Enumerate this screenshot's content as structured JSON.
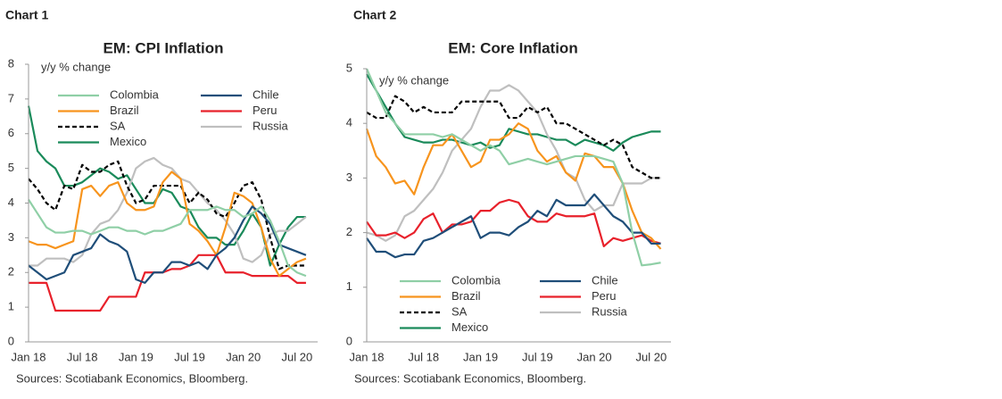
{
  "chart_data": [
    {
      "type": "line",
      "label": "Chart 1",
      "title": "EM: CPI Inflation",
      "ylabel": "y/y % change",
      "source": "Sources: Scotiabank Economics, Bloomberg.",
      "categories": [
        "Jan 18",
        null,
        null,
        null,
        null,
        null,
        "Jul 18",
        null,
        null,
        null,
        null,
        null,
        "Jan 19",
        null,
        null,
        null,
        null,
        null,
        "Jul 19",
        null,
        null,
        null,
        null,
        null,
        "Jan 20",
        null,
        null,
        null,
        null,
        null,
        "Jul 20",
        null
      ],
      "ylim": [
        0,
        8
      ],
      "yticks": [
        0,
        1,
        2,
        3,
        4,
        5,
        6,
        7,
        8
      ],
      "grid": false,
      "legend": "upper-left",
      "series": [
        {
          "name": "Colombia",
          "color": "#8fcfa6",
          "values": [
            4.1,
            3.7,
            3.3,
            3.15,
            3.15,
            3.2,
            3.2,
            3.1,
            3.2,
            3.3,
            3.3,
            3.2,
            3.2,
            3.1,
            3.2,
            3.2,
            3.3,
            3.4,
            3.8,
            3.8,
            3.8,
            3.9,
            3.8,
            3.8,
            3.6,
            3.7,
            3.9,
            3.5,
            2.9,
            2.2,
            2.0,
            1.9
          ]
        },
        {
          "name": "Chile",
          "color": "#1f4e79",
          "values": [
            2.2,
            2.0,
            1.8,
            1.9,
            2.0,
            2.5,
            2.6,
            2.7,
            3.1,
            2.9,
            2.8,
            2.6,
            1.8,
            1.7,
            2.0,
            2.0,
            2.3,
            2.3,
            2.2,
            2.3,
            2.1,
            2.5,
            2.7,
            3.0,
            3.5,
            3.9,
            3.7,
            3.4,
            2.8,
            2.7,
            2.6,
            2.5
          ]
        },
        {
          "name": "Brazil",
          "color": "#f7941d",
          "values": [
            2.9,
            2.8,
            2.8,
            2.7,
            2.8,
            2.9,
            4.4,
            4.5,
            4.2,
            4.5,
            4.6,
            4.0,
            3.8,
            3.8,
            3.9,
            4.6,
            4.9,
            4.7,
            3.4,
            3.2,
            2.9,
            2.5,
            3.3,
            4.3,
            4.2,
            4.0,
            3.3,
            2.4,
            1.9,
            2.1,
            2.3,
            2.4
          ]
        },
        {
          "name": "Peru",
          "color": "#e8212b",
          "values": [
            1.7,
            1.7,
            1.7,
            0.9,
            0.9,
            0.9,
            0.9,
            0.9,
            0.9,
            1.3,
            1.3,
            1.3,
            1.3,
            2.0,
            2.0,
            2.0,
            2.1,
            2.1,
            2.2,
            2.5,
            2.5,
            2.5,
            2.0,
            2.0,
            2.0,
            1.9,
            1.9,
            1.9,
            1.9,
            1.9,
            1.7,
            1.7
          ]
        },
        {
          "name": "SA",
          "color": "#000000",
          "dashed": true,
          "values": [
            4.7,
            4.4,
            4.0,
            3.8,
            4.5,
            4.4,
            5.1,
            4.9,
            4.9,
            5.1,
            5.2,
            4.5,
            4.0,
            4.1,
            4.5,
            4.5,
            4.5,
            4.5,
            4.0,
            4.3,
            4.1,
            3.7,
            3.6,
            4.0,
            4.5,
            4.6,
            4.1,
            3.0,
            2.1,
            2.2,
            2.2,
            2.2
          ]
        },
        {
          "name": "Russia",
          "color": "#bfbfbf",
          "values": [
            2.2,
            2.2,
            2.4,
            2.4,
            2.4,
            2.3,
            2.5,
            3.1,
            3.4,
            3.5,
            3.8,
            4.3,
            5.0,
            5.2,
            5.3,
            5.1,
            5.0,
            4.7,
            4.6,
            4.3,
            4.0,
            3.8,
            3.5,
            3.1,
            2.4,
            2.3,
            2.5,
            3.1,
            3.2,
            3.2,
            3.4,
            3.6
          ]
        },
        {
          "name": "Mexico",
          "color": "#1a8a5a",
          "values": [
            6.8,
            5.5,
            5.2,
            5.0,
            4.5,
            4.5,
            4.6,
            4.8,
            5.0,
            4.9,
            4.7,
            4.8,
            4.4,
            4.0,
            4.0,
            4.4,
            4.3,
            3.9,
            3.8,
            3.3,
            3.0,
            3.0,
            2.8,
            2.8,
            3.2,
            3.7,
            3.3,
            2.2,
            2.8,
            3.3,
            3.6,
            3.6
          ]
        }
      ]
    },
    {
      "type": "line",
      "label": "Chart 2",
      "title": "EM: Core Inflation",
      "ylabel": "y/y % change",
      "source": "Sources: Scotiabank Economics, Bloomberg.",
      "categories": [
        "Jan 18",
        null,
        null,
        null,
        null,
        null,
        "Jul 18",
        null,
        null,
        null,
        null,
        null,
        "Jan 19",
        null,
        null,
        null,
        null,
        null,
        "Jul 19",
        null,
        null,
        null,
        null,
        null,
        "Jan 20",
        null,
        null,
        null,
        null,
        null,
        "Jul 20",
        null
      ],
      "ylim": [
        0,
        5
      ],
      "yticks": [
        0,
        1,
        2,
        3,
        4,
        5
      ],
      "grid": false,
      "legend": "lower-left",
      "series": [
        {
          "name": "Colombia",
          "color": "#8fcfa6",
          "values": [
            5.0,
            4.6,
            4.2,
            4.0,
            3.8,
            3.8,
            3.8,
            3.8,
            3.75,
            3.8,
            3.7,
            3.6,
            3.5,
            3.6,
            3.5,
            3.25,
            3.3,
            3.35,
            3.3,
            3.25,
            3.3,
            3.35,
            3.4,
            3.4,
            3.4,
            3.35,
            3.3,
            2.9,
            2.0,
            1.4,
            1.42,
            1.45
          ]
        },
        {
          "name": "Chile",
          "color": "#1f4e79",
          "values": [
            1.9,
            1.65,
            1.65,
            1.55,
            1.6,
            1.6,
            1.85,
            1.9,
            2.0,
            2.1,
            2.2,
            2.3,
            1.9,
            2.0,
            2.0,
            1.95,
            2.1,
            2.2,
            2.4,
            2.3,
            2.6,
            2.5,
            2.5,
            2.5,
            2.7,
            2.5,
            2.3,
            2.2,
            2.0,
            2.0,
            1.8,
            1.8
          ]
        },
        {
          "name": "Brazil",
          "color": "#f7941d",
          "values": [
            3.9,
            3.4,
            3.2,
            2.9,
            2.95,
            2.7,
            3.2,
            3.6,
            3.6,
            3.8,
            3.5,
            3.2,
            3.3,
            3.7,
            3.7,
            3.8,
            4.0,
            3.9,
            3.5,
            3.3,
            3.4,
            3.1,
            2.95,
            3.45,
            3.4,
            3.2,
            3.2,
            2.9,
            2.4,
            2.0,
            1.9,
            1.7
          ]
        },
        {
          "name": "Peru",
          "color": "#e8212b",
          "values": [
            2.2,
            1.95,
            1.95,
            2.0,
            1.9,
            2.0,
            2.25,
            2.35,
            2.0,
            2.15,
            2.15,
            2.2,
            2.4,
            2.4,
            2.55,
            2.6,
            2.55,
            2.3,
            2.2,
            2.2,
            2.35,
            2.3,
            2.3,
            2.3,
            2.35,
            1.75,
            1.9,
            1.85,
            1.9,
            1.95,
            1.85,
            1.8
          ]
        },
        {
          "name": "SA",
          "color": "#000000",
          "dashed": true,
          "values": [
            4.2,
            4.1,
            4.1,
            4.5,
            4.4,
            4.2,
            4.3,
            4.2,
            4.2,
            4.2,
            4.4,
            4.4,
            4.4,
            4.4,
            4.4,
            4.1,
            4.1,
            4.3,
            4.2,
            4.3,
            4.0,
            4.0,
            3.9,
            3.8,
            3.7,
            3.6,
            3.7,
            3.6,
            3.2,
            3.1,
            3.0,
            3.0
          ]
        },
        {
          "name": "Russia",
          "color": "#bfbfbf",
          "values": [
            2.0,
            1.95,
            1.85,
            1.95,
            2.3,
            2.4,
            2.6,
            2.8,
            3.1,
            3.5,
            3.7,
            3.9,
            4.3,
            4.6,
            4.6,
            4.7,
            4.6,
            4.4,
            4.2,
            3.8,
            3.5,
            3.1,
            3.0,
            2.6,
            2.4,
            2.5,
            2.5,
            2.9,
            2.9,
            2.9,
            3.0,
            3.0
          ]
        },
        {
          "name": "Mexico",
          "color": "#1a8a5a",
          "values": [
            4.9,
            4.6,
            4.3,
            4.0,
            3.75,
            3.7,
            3.65,
            3.65,
            3.7,
            3.7,
            3.65,
            3.6,
            3.65,
            3.55,
            3.6,
            3.9,
            3.85,
            3.8,
            3.8,
            3.75,
            3.7,
            3.7,
            3.6,
            3.7,
            3.65,
            3.6,
            3.5,
            3.65,
            3.75,
            3.8,
            3.85,
            3.85
          ]
        }
      ]
    }
  ]
}
